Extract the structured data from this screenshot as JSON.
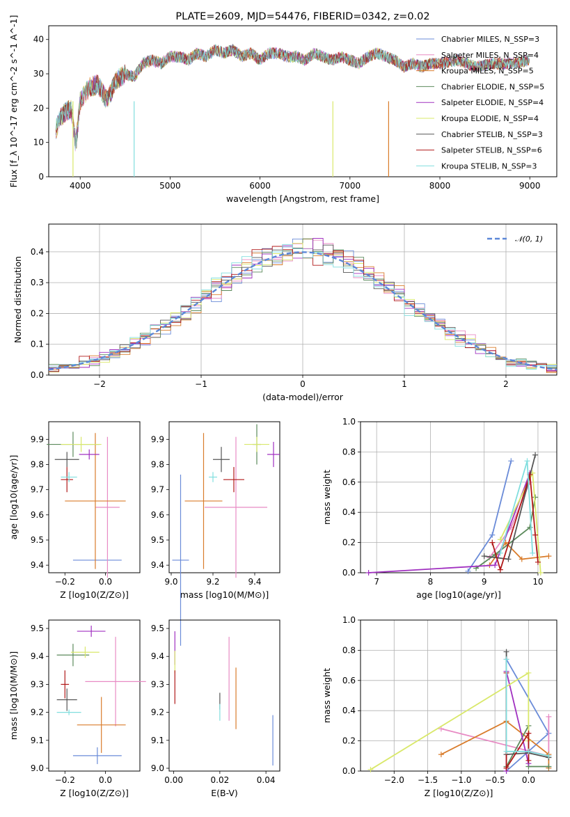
{
  "chart_data": [
    {
      "type": "line",
      "title": "PLATE=2609, MJD=54476, FIBERID=0342, z=0.02",
      "xlabel": "wavelength [Angstrom, rest frame]",
      "ylabel": "Flux [f_λ 10^-17 erg cm^-2 s^-1 A^-1]",
      "xlim": [
        3650,
        9300
      ],
      "ylim": [
        0,
        44
      ],
      "xticks": [
        "4000",
        "5000",
        "6000",
        "7000",
        "8000",
        "9000"
      ],
      "yticks": [
        "0",
        "10",
        "20",
        "30",
        "40"
      ],
      "grid": false,
      "legend": "top-right",
      "series": [
        {
          "name": "Chabrier MILES, N_SSP=3",
          "color": "#6a8bd8"
        },
        {
          "name": "Salpeter MILES, N_SSP=4",
          "color": "#e88bc4"
        },
        {
          "name": "Kroupa MILES, N_SSP=5",
          "color": "#d97c2b"
        },
        {
          "name": "Chabrier ELODIE, N_SSP=5",
          "color": "#5b8a5b"
        },
        {
          "name": "Salpeter ELODIE, N_SSP=4",
          "color": "#a030c0"
        },
        {
          "name": "Kroupa ELODIE, N_SSP=4",
          "color": "#d9e86a"
        },
        {
          "name": "Chabrier STELIB, N_SSP=3",
          "color": "#555555"
        },
        {
          "name": "Salpeter STELIB, N_SSP=6",
          "color": "#b01818"
        },
        {
          "name": "Kroupa STELIB, N_SSP=3",
          "color": "#80dede"
        }
      ],
      "spectrum": {
        "x": [
          3730,
          3800,
          3900,
          3950,
          4000,
          4100,
          4200,
          4300,
          4400,
          4500,
          4600,
          4700,
          4800,
          4900,
          5000,
          5100,
          5200,
          5300,
          5400,
          5500,
          5600,
          5700,
          5800,
          5900,
          6000,
          6100,
          6200,
          6300,
          6400,
          6500,
          6600,
          6700,
          6800,
          6900,
          7000,
          7100,
          7200,
          7300,
          7400,
          7500,
          7600,
          7700,
          7800,
          7900,
          8000,
          8200,
          8400,
          8600,
          8800,
          9000
        ],
        "y": [
          14,
          18,
          20,
          9,
          22,
          26,
          27,
          22,
          28,
          30,
          29,
          33,
          34,
          33,
          35,
          35,
          34,
          36,
          35,
          37,
          36,
          37,
          35,
          36,
          34,
          36,
          36,
          35,
          35,
          34,
          36,
          35,
          34,
          35,
          34,
          33,
          35,
          36,
          35,
          34,
          32,
          33,
          32,
          33,
          33,
          34,
          32,
          33,
          33,
          34
        ],
        "dropouts_x": [
          3920,
          4600,
          6810,
          7430
        ]
      }
    },
    {
      "type": "histogram",
      "xlabel": "(data-model)/error",
      "ylabel": "Normed distribution",
      "xlim": [
        -2.5,
        2.5
      ],
      "ylim": [
        0,
        0.49
      ],
      "xticks": [
        "−2",
        "−1",
        "0",
        "1",
        "2"
      ],
      "yticks": [
        "0.0",
        "0.1",
        "0.2",
        "0.3",
        "0.4"
      ],
      "grid": true,
      "legend": "top-right",
      "reference_label": "𝒩(0, 1)",
      "reference_color": "#5b87d8"
    },
    {
      "type": "scatter",
      "xlabel": "Z [log10(Z/Z⊙)]",
      "ylabel": "age [log10(age/yr)]",
      "xlim": [
        -0.28,
        0.17
      ],
      "ylim": [
        9.37,
        9.97
      ],
      "xticks": [
        "−0.2",
        "0.0"
      ],
      "yticks": [
        "9.4",
        "9.5",
        "9.6",
        "9.7",
        "9.8",
        "9.9"
      ],
      "points": [
        {
          "x": -0.04,
          "y": 9.42,
          "xe": 0.12,
          "ye": 0.0,
          "color": "#6a8bd8"
        },
        {
          "x": 0.01,
          "y": 9.63,
          "xe": 0.06,
          "ye": 0.28,
          "color": "#e88bc4"
        },
        {
          "x": -0.05,
          "y": 9.655,
          "xe": 0.15,
          "ye": 0.27,
          "color": "#d97c2b"
        },
        {
          "x": -0.16,
          "y": 9.88,
          "xe": 0.13,
          "ye": 0.05,
          "color": "#5b8a5b"
        },
        {
          "x": -0.08,
          "y": 9.84,
          "xe": 0.05,
          "ye": 0.02,
          "color": "#a030c0"
        },
        {
          "x": -0.12,
          "y": 9.88,
          "xe": 0.1,
          "ye": 0.03,
          "color": "#d9e86a"
        },
        {
          "x": -0.19,
          "y": 9.82,
          "xe": 0.06,
          "ye": 0.03,
          "color": "#555555"
        },
        {
          "x": -0.19,
          "y": 9.74,
          "xe": 0.03,
          "ye": 0.05,
          "color": "#b01818"
        },
        {
          "x": -0.18,
          "y": 9.75,
          "xe": 0.04,
          "ye": 0.02,
          "color": "#80dede"
        }
      ]
    },
    {
      "type": "scatter",
      "xlabel": "mass [log10(M/M⊙)]",
      "ylabel": "",
      "xlim": [
        8.99,
        9.52
      ],
      "ylim": [
        9.37,
        9.97
      ],
      "xticks": [
        "9.0",
        "9.2",
        "9.4"
      ],
      "yticks": [
        "9.4",
        "9.5",
        "9.6",
        "9.7",
        "9.8",
        "9.9"
      ],
      "points": [
        {
          "x": 9.045,
          "y": 9.42,
          "xe": 0.04,
          "ye": 0.34,
          "color": "#6a8bd8"
        },
        {
          "x": 9.31,
          "y": 9.63,
          "xe": 0.15,
          "ye": 0.28,
          "color": "#e88bc4"
        },
        {
          "x": 9.155,
          "y": 9.655,
          "xe": 0.09,
          "ye": 0.27,
          "color": "#d97c2b"
        },
        {
          "x": 9.41,
          "y": 9.88,
          "xe": 0.02,
          "ye": 0.08,
          "color": "#5b8a5b"
        },
        {
          "x": 9.49,
          "y": 9.84,
          "xe": 0.03,
          "ye": 0.05,
          "color": "#a030c0"
        },
        {
          "x": 9.41,
          "y": 9.88,
          "xe": 0.06,
          "ye": 0.03,
          "color": "#d9e86a"
        },
        {
          "x": 9.24,
          "y": 9.82,
          "xe": 0.04,
          "ye": 0.05,
          "color": "#555555"
        },
        {
          "x": 9.3,
          "y": 9.74,
          "xe": 0.05,
          "ye": 0.05,
          "color": "#b01818"
        },
        {
          "x": 9.2,
          "y": 9.75,
          "xe": 0.02,
          "ye": 0.02,
          "color": "#80dede"
        }
      ]
    },
    {
      "type": "line",
      "xlabel": "age [log10(age/yr)]",
      "ylabel": "mass weight",
      "xlim": [
        6.7,
        10.35
      ],
      "ylim": [
        0,
        1.0
      ],
      "xticks": [
        "7",
        "8",
        "9",
        "10"
      ],
      "yticks": [
        "0.0",
        "0.2",
        "0.4",
        "0.6",
        "0.8",
        "1.0"
      ],
      "grid": true,
      "series": [
        {
          "color": "#6a8bd8",
          "x": [
            8.7,
            9.15,
            9.5
          ],
          "y": [
            0.01,
            0.25,
            0.74
          ]
        },
        {
          "color": "#e88bc4",
          "x": [
            9.1,
            9.5,
            9.85
          ],
          "y": [
            0.1,
            0.3,
            0.6
          ]
        },
        {
          "color": "#d97c2b",
          "x": [
            9.1,
            9.4,
            9.7,
            10.2
          ],
          "y": [
            0.05,
            0.2,
            0.09,
            0.11
          ]
        },
        {
          "color": "#5b8a5b",
          "x": [
            8.85,
            9.2,
            9.85,
            9.95
          ],
          "y": [
            0.03,
            0.12,
            0.3,
            0.5
          ]
        },
        {
          "color": "#a030c0",
          "x": [
            6.85,
            9.2,
            9.85
          ],
          "y": [
            0.0,
            0.05,
            0.66
          ]
        },
        {
          "color": "#d9e86a",
          "x": [
            9.3,
            9.9,
            10.05
          ],
          "y": [
            0.22,
            0.66,
            0.0
          ]
        },
        {
          "color": "#555555",
          "x": [
            9.0,
            9.45,
            9.95
          ],
          "y": [
            0.11,
            0.09,
            0.78
          ]
        },
        {
          "color": "#b01818",
          "x": [
            9.15,
            9.3,
            9.85,
            9.95,
            10.0
          ],
          "y": [
            0.2,
            0.02,
            0.65,
            0.25,
            0.07
          ]
        },
        {
          "color": "#80dede",
          "x": [
            9.3,
            9.8,
            9.9
          ],
          "y": [
            0.13,
            0.74,
            0.13
          ]
        }
      ]
    },
    {
      "type": "scatter",
      "xlabel": "Z [log10(Z/Z⊙)]",
      "ylabel": "mass [log10(M/M⊙)]",
      "xlim": [
        -0.28,
        0.17
      ],
      "ylim": [
        8.99,
        9.53
      ],
      "xticks": [
        "−0.2",
        "0.0"
      ],
      "yticks": [
        "9.0",
        "9.1",
        "9.2",
        "9.3",
        "9.4",
        "9.5"
      ],
      "points": [
        {
          "x": -0.04,
          "y": 9.045,
          "xe": 0.12,
          "ye": 0.03,
          "color": "#6a8bd8"
        },
        {
          "x": 0.05,
          "y": 9.31,
          "xe": 0.15,
          "ye": 0.16,
          "color": "#e88bc4"
        },
        {
          "x": -0.02,
          "y": 9.155,
          "xe": 0.12,
          "ye": 0.1,
          "color": "#d97c2b"
        },
        {
          "x": -0.16,
          "y": 9.405,
          "xe": 0.08,
          "ye": 0.04,
          "color": "#5b8a5b"
        },
        {
          "x": -0.07,
          "y": 9.49,
          "xe": 0.07,
          "ye": 0.02,
          "color": "#a030c0"
        },
        {
          "x": -0.1,
          "y": 9.415,
          "xe": 0.07,
          "ye": 0.02,
          "color": "#d9e86a"
        },
        {
          "x": -0.19,
          "y": 9.245,
          "xe": 0.05,
          "ye": 0.04,
          "color": "#555555"
        },
        {
          "x": -0.2,
          "y": 9.3,
          "xe": 0.02,
          "ye": 0.05,
          "color": "#b01818"
        },
        {
          "x": -0.18,
          "y": 9.2,
          "xe": 0.06,
          "ye": 0.01,
          "color": "#80dede"
        }
      ]
    },
    {
      "type": "scatter",
      "xlabel": "E(B-V)",
      "ylabel": "",
      "xlim": [
        -0.002,
        0.046
      ],
      "ylim": [
        8.99,
        9.53
      ],
      "xticks": [
        "0.00",
        "0.02",
        "0.04"
      ],
      "yticks": [
        "9.0",
        "9.1",
        "9.2",
        "9.3",
        "9.4",
        "9.5"
      ],
      "points": [
        {
          "x": 0.043,
          "y": 9.1,
          "xe": 0,
          "ye": 0.09,
          "color": "#6a8bd8"
        },
        {
          "x": 0.024,
          "y": 9.32,
          "xe": 0,
          "ye": 0.15,
          "color": "#e88bc4"
        },
        {
          "x": 0.027,
          "y": 9.25,
          "xe": 0,
          "ye": 0.11,
          "color": "#d97c2b"
        },
        {
          "x": 0.0005,
          "y": 9.43,
          "xe": 0,
          "ye": 0.06,
          "color": "#a030c0"
        },
        {
          "x": 0.0005,
          "y": 9.38,
          "xe": 0,
          "ye": 0.04,
          "color": "#d9e86a"
        },
        {
          "x": 0.02,
          "y": 9.24,
          "xe": 0,
          "ye": 0.03,
          "color": "#555555"
        },
        {
          "x": 0.0005,
          "y": 9.29,
          "xe": 0,
          "ye": 0.06,
          "color": "#b01818"
        },
        {
          "x": 0.02,
          "y": 9.2,
          "xe": 0,
          "ye": 0.03,
          "color": "#80dede"
        }
      ]
    },
    {
      "type": "line",
      "xlabel": "Z [log10(Z/Z⊙)]",
      "ylabel": "mass weight",
      "xlim": [
        -2.5,
        0.42
      ],
      "ylim": [
        0,
        1.0
      ],
      "xticks": [
        "−2.0",
        "−1.5",
        "−1.0",
        "−0.5",
        "0.0"
      ],
      "yticks": [
        "0.0",
        "0.2",
        "0.4",
        "0.6",
        "0.8",
        "1.0"
      ],
      "grid": true,
      "series": [
        {
          "color": "#6a8bd8",
          "x": [
            -0.33,
            0.3,
            -0.33
          ],
          "y": [
            0.0,
            0.25,
            0.74
          ]
        },
        {
          "color": "#e88bc4",
          "x": [
            -1.3,
            0.3,
            0.3
          ],
          "y": [
            0.28,
            0.1,
            0.36
          ]
        },
        {
          "color": "#d97c2b",
          "x": [
            -1.3,
            -0.33,
            0.3,
            0.3
          ],
          "y": [
            0.11,
            0.33,
            0.11,
            0.02
          ]
        },
        {
          "color": "#5b8a5b",
          "x": [
            -0.33,
            0.0,
            0.0,
            0.3
          ],
          "y": [
            0.03,
            0.3,
            0.03,
            0.03
          ]
        },
        {
          "color": "#a030c0",
          "x": [
            -0.33,
            -0.33,
            0.0
          ],
          "y": [
            0.0,
            0.66,
            0.05
          ]
        },
        {
          "color": "#d9e86a",
          "x": [
            -2.35,
            0.0,
            0.0
          ],
          "y": [
            0.01,
            0.65,
            0.2
          ]
        },
        {
          "color": "#555555",
          "x": [
            -0.33,
            -0.33,
            0.0,
            0.3
          ],
          "y": [
            0.79,
            0.11,
            0.12,
            0.09
          ]
        },
        {
          "color": "#b01818",
          "x": [
            -0.33,
            -0.33,
            0.0,
            0.0
          ],
          "y": [
            0.65,
            0.02,
            0.25,
            0.07
          ]
        },
        {
          "color": "#80dede",
          "x": [
            -0.33,
            -0.33,
            0.0,
            0.3
          ],
          "y": [
            0.74,
            0.13,
            0.13,
            0.1
          ]
        }
      ]
    }
  ]
}
